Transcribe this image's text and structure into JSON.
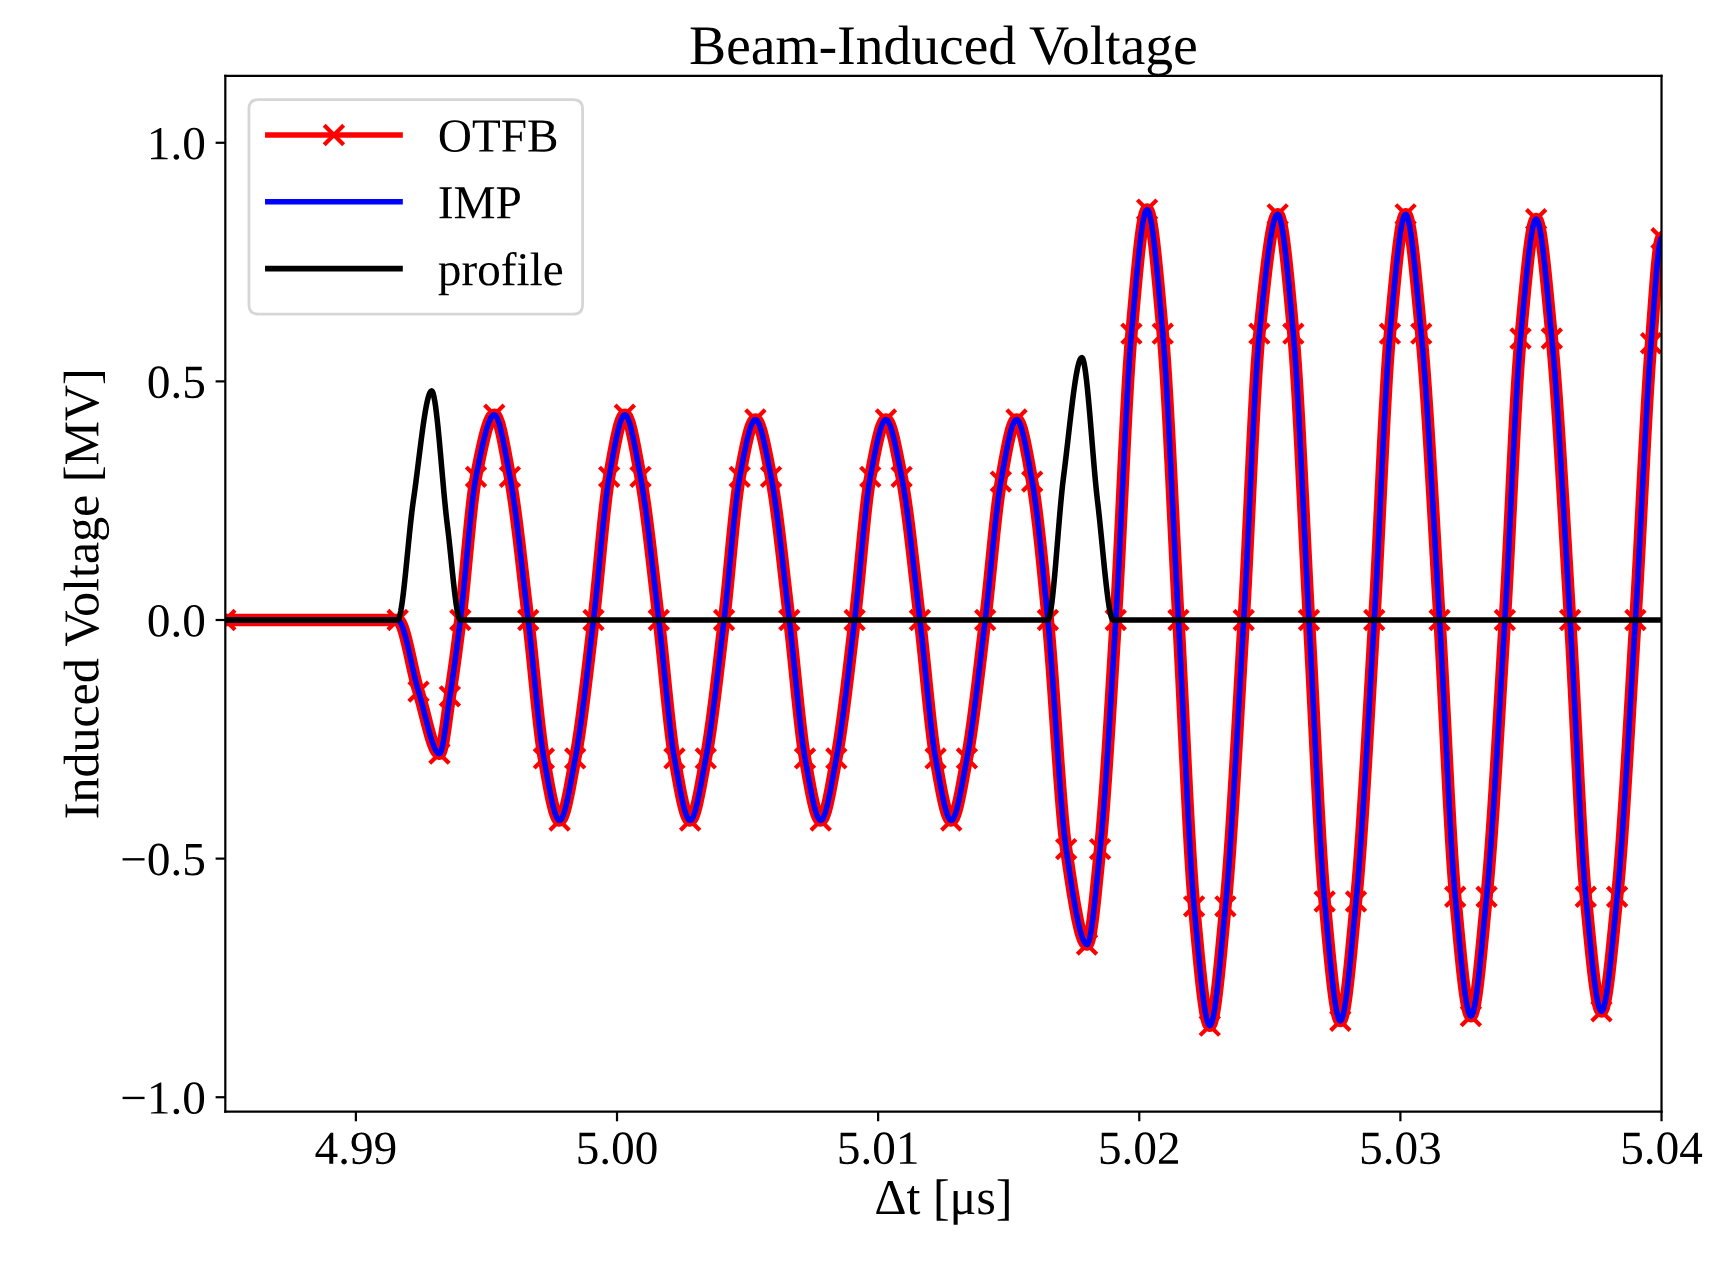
{
  "chart_data": {
    "type": "line",
    "title": "Beam-Induced Voltage",
    "xlabel": "Δt [μs]",
    "ylabel": "Induced Voltage [MV]",
    "xlim": [
      4.985,
      5.04
    ],
    "ylim": [
      -1.03,
      1.14
    ],
    "xticks": [
      {
        "value": 4.99,
        "label": "4.99"
      },
      {
        "value": 5.0,
        "label": "5.00"
      },
      {
        "value": 5.01,
        "label": "5.01"
      },
      {
        "value": 5.02,
        "label": "5.02"
      },
      {
        "value": 5.03,
        "label": "5.03"
      },
      {
        "value": 5.04,
        "label": "5.04"
      }
    ],
    "yticks": [
      {
        "value": -1.0,
        "label": "−1.0"
      },
      {
        "value": -0.5,
        "label": "−0.5"
      },
      {
        "value": 0.0,
        "label": "0.0"
      },
      {
        "value": 0.5,
        "label": "0.5"
      },
      {
        "value": 1.0,
        "label": "1.0"
      }
    ],
    "grid": false,
    "legend": "top left",
    "line_style": "solid",
    "x": [
      4.985,
      4.9916,
      4.9924,
      4.9932,
      4.9936,
      4.994,
      4.9946,
      4.9953,
      4.9959,
      4.9966,
      4.9972,
      4.9978,
      4.9984,
      4.9991,
      4.9997,
      5.0003,
      5.0009,
      5.0016,
      5.0022,
      5.0028,
      5.0034,
      5.0041,
      5.0047,
      5.0053,
      5.0059,
      5.0066,
      5.0072,
      5.0078,
      5.0084,
      5.0091,
      5.0097,
      5.0103,
      5.0109,
      5.0116,
      5.0122,
      5.0128,
      5.0134,
      5.0141,
      5.0147,
      5.0153,
      5.0159,
      5.0165,
      5.0172,
      5.018,
      5.0185,
      5.0191,
      5.0197,
      5.0203,
      5.0209,
      5.0215,
      5.0221,
      5.0227,
      5.0233,
      5.024,
      5.0246,
      5.0253,
      5.0259,
      5.0265,
      5.0271,
      5.0277,
      5.0283,
      5.029,
      5.0296,
      5.0302,
      5.0308,
      5.0315,
      5.0321,
      5.0327,
      5.0333,
      5.034,
      5.0346,
      5.0352,
      5.0358,
      5.0365,
      5.0371,
      5.0377,
      5.0383,
      5.039,
      5.0396,
      5.04
    ],
    "series": [
      {
        "name": "OTFB",
        "color": "#ff0000",
        "marker": "cross",
        "values": [
          0,
          0,
          -0.15,
          -0.28,
          -0.16,
          0,
          0.3,
          0.43,
          0.3,
          0,
          -0.29,
          -0.42,
          -0.29,
          0,
          0.3,
          0.43,
          0.3,
          0,
          -0.29,
          -0.42,
          -0.29,
          0,
          0.3,
          0.42,
          0.3,
          0,
          -0.29,
          -0.42,
          -0.29,
          0,
          0.3,
          0.42,
          0.3,
          0,
          -0.29,
          -0.42,
          -0.29,
          0,
          0.29,
          0.42,
          0.29,
          0,
          -0.48,
          -0.68,
          -0.48,
          0,
          0.6,
          0.86,
          0.6,
          0,
          -0.6,
          -0.85,
          -0.6,
          0,
          0.6,
          0.85,
          0.6,
          0,
          -0.59,
          -0.84,
          -0.59,
          0,
          0.6,
          0.85,
          0.6,
          0,
          -0.58,
          -0.83,
          -0.58,
          0,
          0.59,
          0.84,
          0.59,
          0,
          -0.58,
          -0.82,
          -0.58,
          0,
          0.58,
          0.8
        ]
      },
      {
        "name": "IMP",
        "color": "#0000ff",
        "marker": "none",
        "values": [
          0,
          0,
          -0.15,
          -0.28,
          -0.16,
          0,
          0.3,
          0.43,
          0.3,
          0,
          -0.29,
          -0.42,
          -0.29,
          0,
          0.3,
          0.43,
          0.3,
          0,
          -0.29,
          -0.42,
          -0.29,
          0,
          0.3,
          0.42,
          0.3,
          0,
          -0.29,
          -0.42,
          -0.29,
          0,
          0.3,
          0.42,
          0.3,
          0,
          -0.29,
          -0.42,
          -0.29,
          0,
          0.29,
          0.42,
          0.29,
          0,
          -0.48,
          -0.68,
          -0.48,
          0,
          0.6,
          0.86,
          0.6,
          0,
          -0.6,
          -0.85,
          -0.6,
          0,
          0.6,
          0.85,
          0.6,
          0,
          -0.59,
          -0.84,
          -0.59,
          0,
          0.6,
          0.85,
          0.6,
          0,
          -0.58,
          -0.83,
          -0.58,
          0,
          0.59,
          0.84,
          0.59,
          0,
          -0.58,
          -0.82,
          -0.58,
          0,
          0.58,
          0.8
        ]
      },
      {
        "name": "profile",
        "color": "#000000",
        "marker": "none",
        "x": [
          4.985,
          4.9916,
          4.9922,
          4.9929,
          4.9935,
          4.994,
          5.0165,
          5.0171,
          5.0178,
          5.0184,
          5.019,
          5.04
        ],
        "values": [
          0,
          0,
          0.25,
          0.48,
          0.2,
          0,
          0,
          0.3,
          0.55,
          0.25,
          0,
          0
        ]
      }
    ]
  }
}
